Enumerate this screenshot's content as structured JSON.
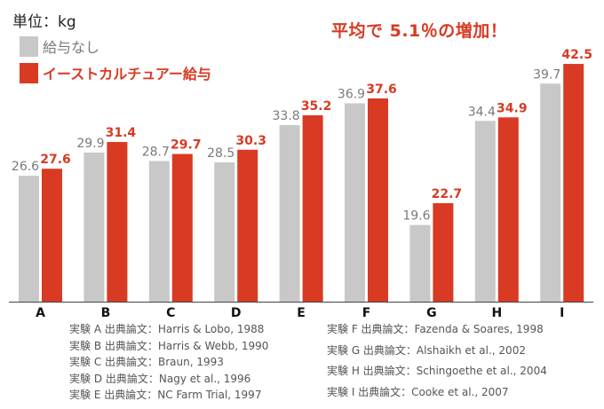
{
  "unit_label": "単位：kg",
  "headline": "平均で 5.1％の増加！",
  "colors": {
    "control": "#c8c8c8",
    "treatment": "#d93a23",
    "control_text": "#7a7a7a",
    "treatment_text": "#d93a23"
  },
  "chart_data": {
    "type": "bar",
    "categories": [
      "A",
      "B",
      "C",
      "D",
      "E",
      "F",
      "G",
      "H",
      "I"
    ],
    "series": [
      {
        "name": "給与なし",
        "values": [
          26.6,
          29.9,
          28.7,
          28.5,
          33.8,
          36.9,
          19.6,
          34.4,
          39.7
        ]
      },
      {
        "name": "イーストカルチュアー給与",
        "values": [
          27.6,
          31.4,
          29.7,
          30.3,
          35.2,
          37.6,
          22.7,
          34.9,
          42.5
        ]
      }
    ],
    "title": "平均で 5.1％の増加！",
    "ylabel": "単位：kg",
    "ylim": [
      8.7,
      44.4
    ],
    "grid": false,
    "legend_position": "top-left"
  },
  "sources_left": [
    "実験 A 出典論文：Harris & Lobo, 1988",
    "実験 B 出典論文：Harris & Webb, 1990",
    "実験 C 出典論文：Braun, 1993",
    "実験 D 出典論文：Nagy et al., 1996",
    "実験 E 出典論文：NC Farm Trial, 1997"
  ],
  "sources_right": [
    "実験 F 出典論文：Fazenda & Soares, 1998",
    "実験 G 出典論文：Alshaikh et al., 2002",
    "実験 H 出典論文：Schingoethe et al., 2004",
    "実験 I 出典論文：Cooke et al., 2007"
  ]
}
